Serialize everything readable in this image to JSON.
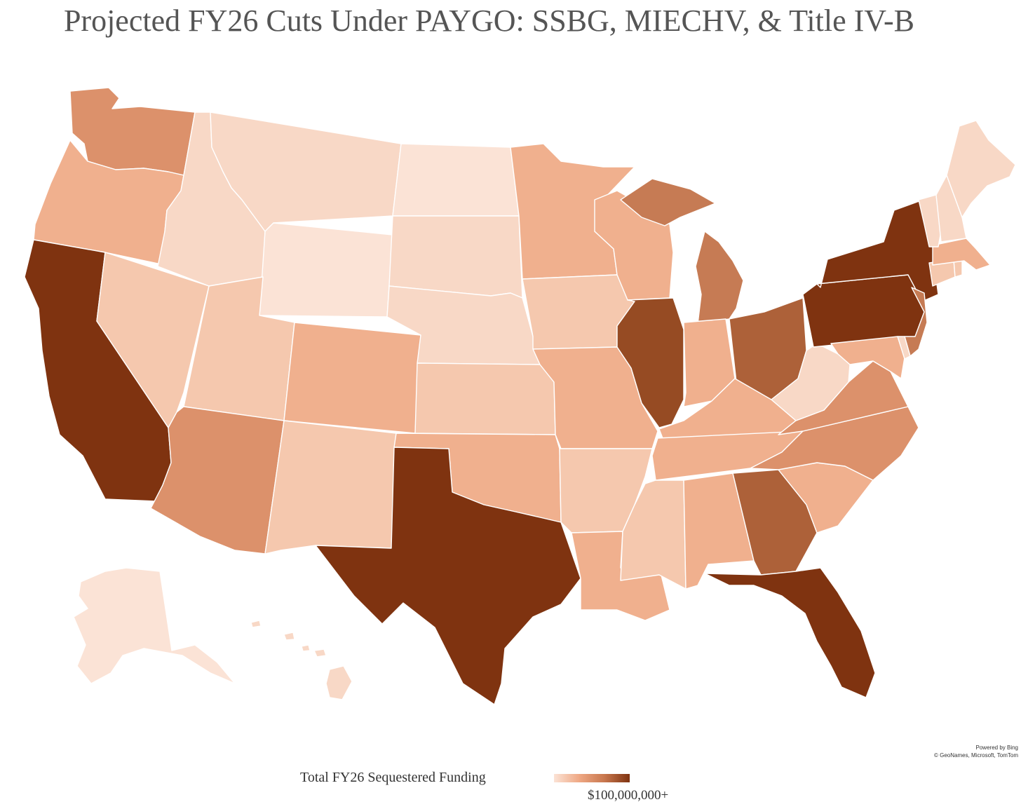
{
  "title": "Projected FY26 Cuts Under PAYGO: SSBG, MIECHV, & Title IV-B",
  "attribution": {
    "line1": "Powered by Bing",
    "line2": "© GeoNames, Microsoft, TomTom"
  },
  "legend": {
    "title": "Total FY26 Sequestered Funding",
    "max_label": "$100,000,000+",
    "color_low": "#fbe3d6",
    "color_high": "#7f3310"
  },
  "palette": {
    "c1": "#fbe3d6",
    "c2": "#f8d8c6",
    "c3": "#f5c8ae",
    "c4": "#f0b08e",
    "c5": "#dc916b",
    "c6": "#c67b54",
    "c7": "#ad6139",
    "c8": "#964b23",
    "c9": "#7f3310"
  },
  "map_data": {
    "type": "choropleth",
    "region": "United States",
    "scale_max_usd": 100000000,
    "shade_scale": "1 (lightest) to 9 (darkest)",
    "states": [
      {
        "state": "WA",
        "shade": 5
      },
      {
        "state": "OR",
        "shade": 4
      },
      {
        "state": "CA",
        "shade": 9
      },
      {
        "state": "NV",
        "shade": 3
      },
      {
        "state": "ID",
        "shade": 2
      },
      {
        "state": "MT",
        "shade": 2
      },
      {
        "state": "WY",
        "shade": 1
      },
      {
        "state": "UT",
        "shade": 3
      },
      {
        "state": "AZ",
        "shade": 5
      },
      {
        "state": "CO",
        "shade": 4
      },
      {
        "state": "NM",
        "shade": 3
      },
      {
        "state": "ND",
        "shade": 1
      },
      {
        "state": "SD",
        "shade": 2
      },
      {
        "state": "NE",
        "shade": 2
      },
      {
        "state": "KS",
        "shade": 3
      },
      {
        "state": "OK",
        "shade": 4
      },
      {
        "state": "TX",
        "shade": 9
      },
      {
        "state": "MN",
        "shade": 4
      },
      {
        "state": "IA",
        "shade": 3
      },
      {
        "state": "MO",
        "shade": 4
      },
      {
        "state": "AR",
        "shade": 3
      },
      {
        "state": "LA",
        "shade": 4
      },
      {
        "state": "WI",
        "shade": 4
      },
      {
        "state": "IL",
        "shade": 8
      },
      {
        "state": "MI",
        "shade": 6
      },
      {
        "state": "IN",
        "shade": 4
      },
      {
        "state": "OH",
        "shade": 7
      },
      {
        "state": "KY",
        "shade": 4
      },
      {
        "state": "TN",
        "shade": 4
      },
      {
        "state": "MS",
        "shade": 3
      },
      {
        "state": "AL",
        "shade": 4
      },
      {
        "state": "GA",
        "shade": 7
      },
      {
        "state": "FL",
        "shade": 9
      },
      {
        "state": "SC",
        "shade": 4
      },
      {
        "state": "NC",
        "shade": 5
      },
      {
        "state": "VA",
        "shade": 5
      },
      {
        "state": "WV",
        "shade": 2
      },
      {
        "state": "PA",
        "shade": 9
      },
      {
        "state": "NY",
        "shade": 9
      },
      {
        "state": "NJ",
        "shade": 6
      },
      {
        "state": "MD",
        "shade": 4
      },
      {
        "state": "DE",
        "shade": 2
      },
      {
        "state": "CT",
        "shade": 3
      },
      {
        "state": "RI",
        "shade": 3
      },
      {
        "state": "MA",
        "shade": 4
      },
      {
        "state": "VT",
        "shade": 2
      },
      {
        "state": "NH",
        "shade": 2
      },
      {
        "state": "ME",
        "shade": 2
      },
      {
        "state": "AK",
        "shade": 1
      },
      {
        "state": "HI",
        "shade": 2
      }
    ]
  }
}
